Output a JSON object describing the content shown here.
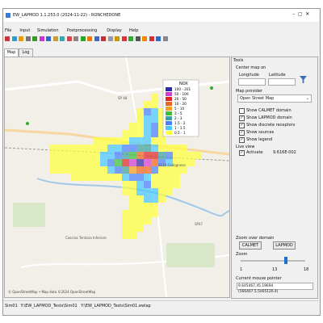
{
  "window": {
    "title": "EW_LAPMOD 1.1.253.0 (2024-11-22) - RONCHEDONE"
  },
  "menu": [
    "File",
    "Input",
    "Simulation",
    "Postprocessing",
    "Display",
    "Help"
  ],
  "tabs": [
    "Map",
    "Log"
  ],
  "map": {
    "legend": {
      "title": "NOX",
      "entries": [
        {
          "label": "100 - 201",
          "color": "#2b2ba8"
        },
        {
          "label": "50 - 100",
          "color": "#d23cd2"
        },
        {
          "label": "20 - 50",
          "color": "#e02828"
        },
        {
          "label": "10 - 20",
          "color": "#f0641e"
        },
        {
          "label": "5 - 10",
          "color": "#f5a01e"
        },
        {
          "label": "3 - 5",
          "color": "#3cbe3c"
        },
        {
          "label": "2 - 3",
          "color": "#3ca0a0"
        },
        {
          "label": "1.5 - 2",
          "color": "#4682ff"
        },
        {
          "label": "1 - 1.5",
          "color": "#46c8ff"
        },
        {
          "label": "0.5 - 1",
          "color": "#ffff3c"
        }
      ]
    },
    "labels": [
      "SP 48",
      "SS10 Codognese",
      "Cascina Tentana Inferiore",
      "SP47"
    ],
    "attribution": "© OpenStreetMap • Map data ©2024 OpenStreetMap"
  },
  "tools": {
    "title": "Tools",
    "center_map_on": "Center map on",
    "longitude_label": "Longitude",
    "latitude_label": "Latitude",
    "map_provider_label": "Map provider",
    "map_provider": "Open Street Map",
    "checkboxes": [
      {
        "label": "Show CALMET domain",
        "checked": false
      },
      {
        "label": "Show LAPMOD domain",
        "checked": true
      },
      {
        "label": "Show discrete receptors",
        "checked": true
      },
      {
        "label": "Show sources",
        "checked": true
      },
      {
        "label": "Show legend",
        "checked": true
      }
    ],
    "live_view_label": "Live view",
    "activate_label": "Activate",
    "activate_checked": true,
    "live_value": "9.616E-002",
    "zoom_over_domain": "Zoom over domain",
    "buttons": [
      "CALMET",
      "LAPMOD"
    ],
    "zoom_label": "Zoom",
    "zoom_min": 1,
    "zoom_value": 13,
    "zoom_max": 18,
    "mouse_pointer_label": "Current mouse pointer",
    "mouse_pointer": "9.645467,45.19694 (566407.5,5005126.4)"
  },
  "status": [
    "Sim01",
    "Y:\\EW_LAPMOD_Tests\\Sim01",
    "Y:\\EW_LAPMOD_Tests\\Sim01.ewlap"
  ]
}
